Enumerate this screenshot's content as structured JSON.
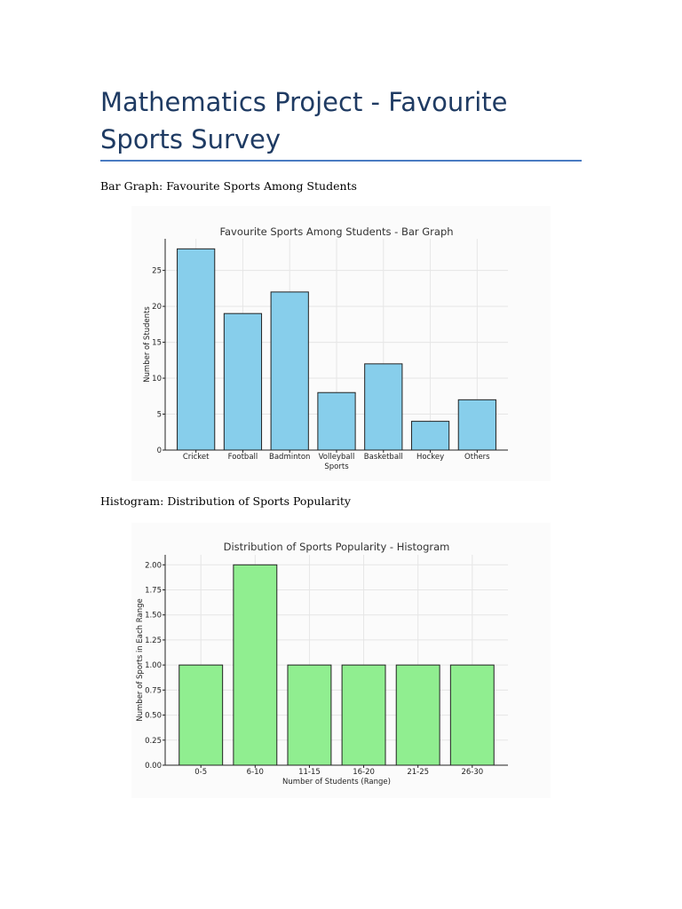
{
  "document": {
    "title": "Mathematics Project - Favourite Sports Survey",
    "caption_bar": "Bar Graph: Favourite Sports Among Students",
    "caption_hist": "Histogram: Distribution of Sports Popularity"
  },
  "colors": {
    "title": "#1f3b63",
    "rule": "#4a7bc2",
    "bar": "#87ceeb",
    "hist": "#90ee90"
  },
  "chart_data": [
    {
      "type": "bar",
      "title": "Favourite Sports Among Students - Bar Graph",
      "xlabel": "Sports",
      "ylabel": "Number of Students",
      "categories": [
        "Cricket",
        "Football",
        "Badminton",
        "Volleyball",
        "Basketball",
        "Hockey",
        "Others"
      ],
      "values": [
        28,
        19,
        22,
        8,
        12,
        4,
        7
      ],
      "ylim": [
        0,
        29.4
      ],
      "yticks": [
        0,
        5,
        10,
        15,
        20,
        25
      ],
      "ytick_labels": [
        "0",
        "5",
        "10",
        "15",
        "20",
        "25"
      ],
      "grid": true,
      "color": "#87ceeb"
    },
    {
      "type": "bar",
      "title": "Distribution of Sports Popularity - Histogram",
      "xlabel": "Number of Students (Range)",
      "ylabel": "Number of Sports in Each Range",
      "categories": [
        "0-5",
        "6-10",
        "11-15",
        "16-20",
        "21-25",
        "26-30"
      ],
      "values": [
        1,
        2,
        1,
        1,
        1,
        1
      ],
      "ylim": [
        0,
        2.1
      ],
      "yticks": [
        0,
        0.25,
        0.5,
        0.75,
        1.0,
        1.25,
        1.5,
        1.75,
        2.0
      ],
      "ytick_labels": [
        "0.00",
        "0.25",
        "0.50",
        "0.75",
        "1.00",
        "1.25",
        "1.50",
        "1.75",
        "2.00"
      ],
      "grid": true,
      "color": "#90ee90"
    }
  ]
}
